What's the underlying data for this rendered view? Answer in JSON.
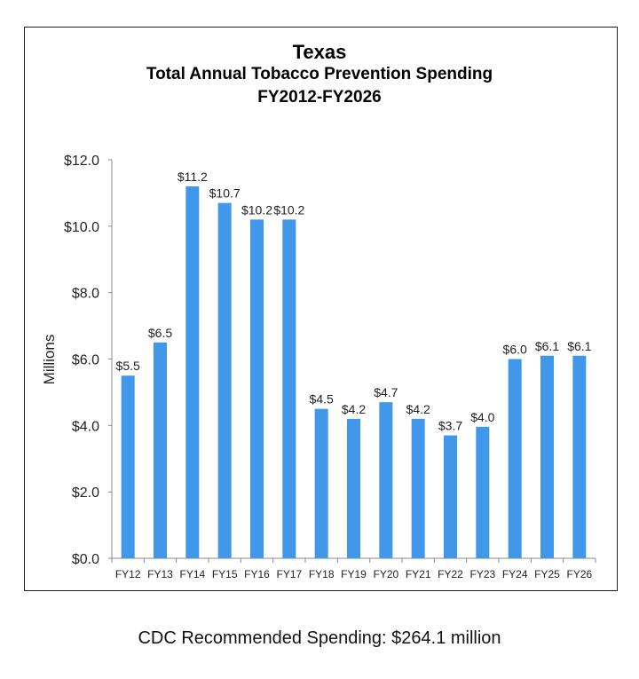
{
  "chart_data": {
    "type": "bar",
    "title": "Texas",
    "subtitle": [
      "Total Annual Tobacco Prevention Spending",
      "FY2012-FY2026"
    ],
    "xlabel": "",
    "ylabel": "Millions",
    "ylim": [
      0,
      12
    ],
    "yticks": [
      "$0.0",
      "$2.0",
      "$4.0",
      "$6.0",
      "$8.0",
      "$10.0",
      "$12.0"
    ],
    "categories": [
      "FY12",
      "FY13",
      "FY14",
      "FY15",
      "FY16",
      "FY17",
      "FY18",
      "FY19",
      "FY20",
      "FY21",
      "FY22",
      "FY23",
      "FY24",
      "FY25",
      "FY26"
    ],
    "values": [
      5.5,
      6.5,
      11.2,
      10.7,
      10.2,
      10.2,
      4.5,
      4.2,
      4.7,
      4.2,
      3.7,
      3.96,
      6.0,
      6.1,
      6.1
    ],
    "data_labels": [
      "$5.5",
      "$6.5",
      "$11.2",
      "$10.7",
      "$10.2",
      "$10.2",
      "$4.5",
      "$4.2",
      "$4.7",
      "$4.2",
      "$3.7",
      "$4.0",
      "$6.0",
      "$6.1",
      "$6.1"
    ],
    "grid": false,
    "legend": "none",
    "bar_color": "#4197E9"
  },
  "footer": "CDC Recommended Spending: $264.1 million"
}
